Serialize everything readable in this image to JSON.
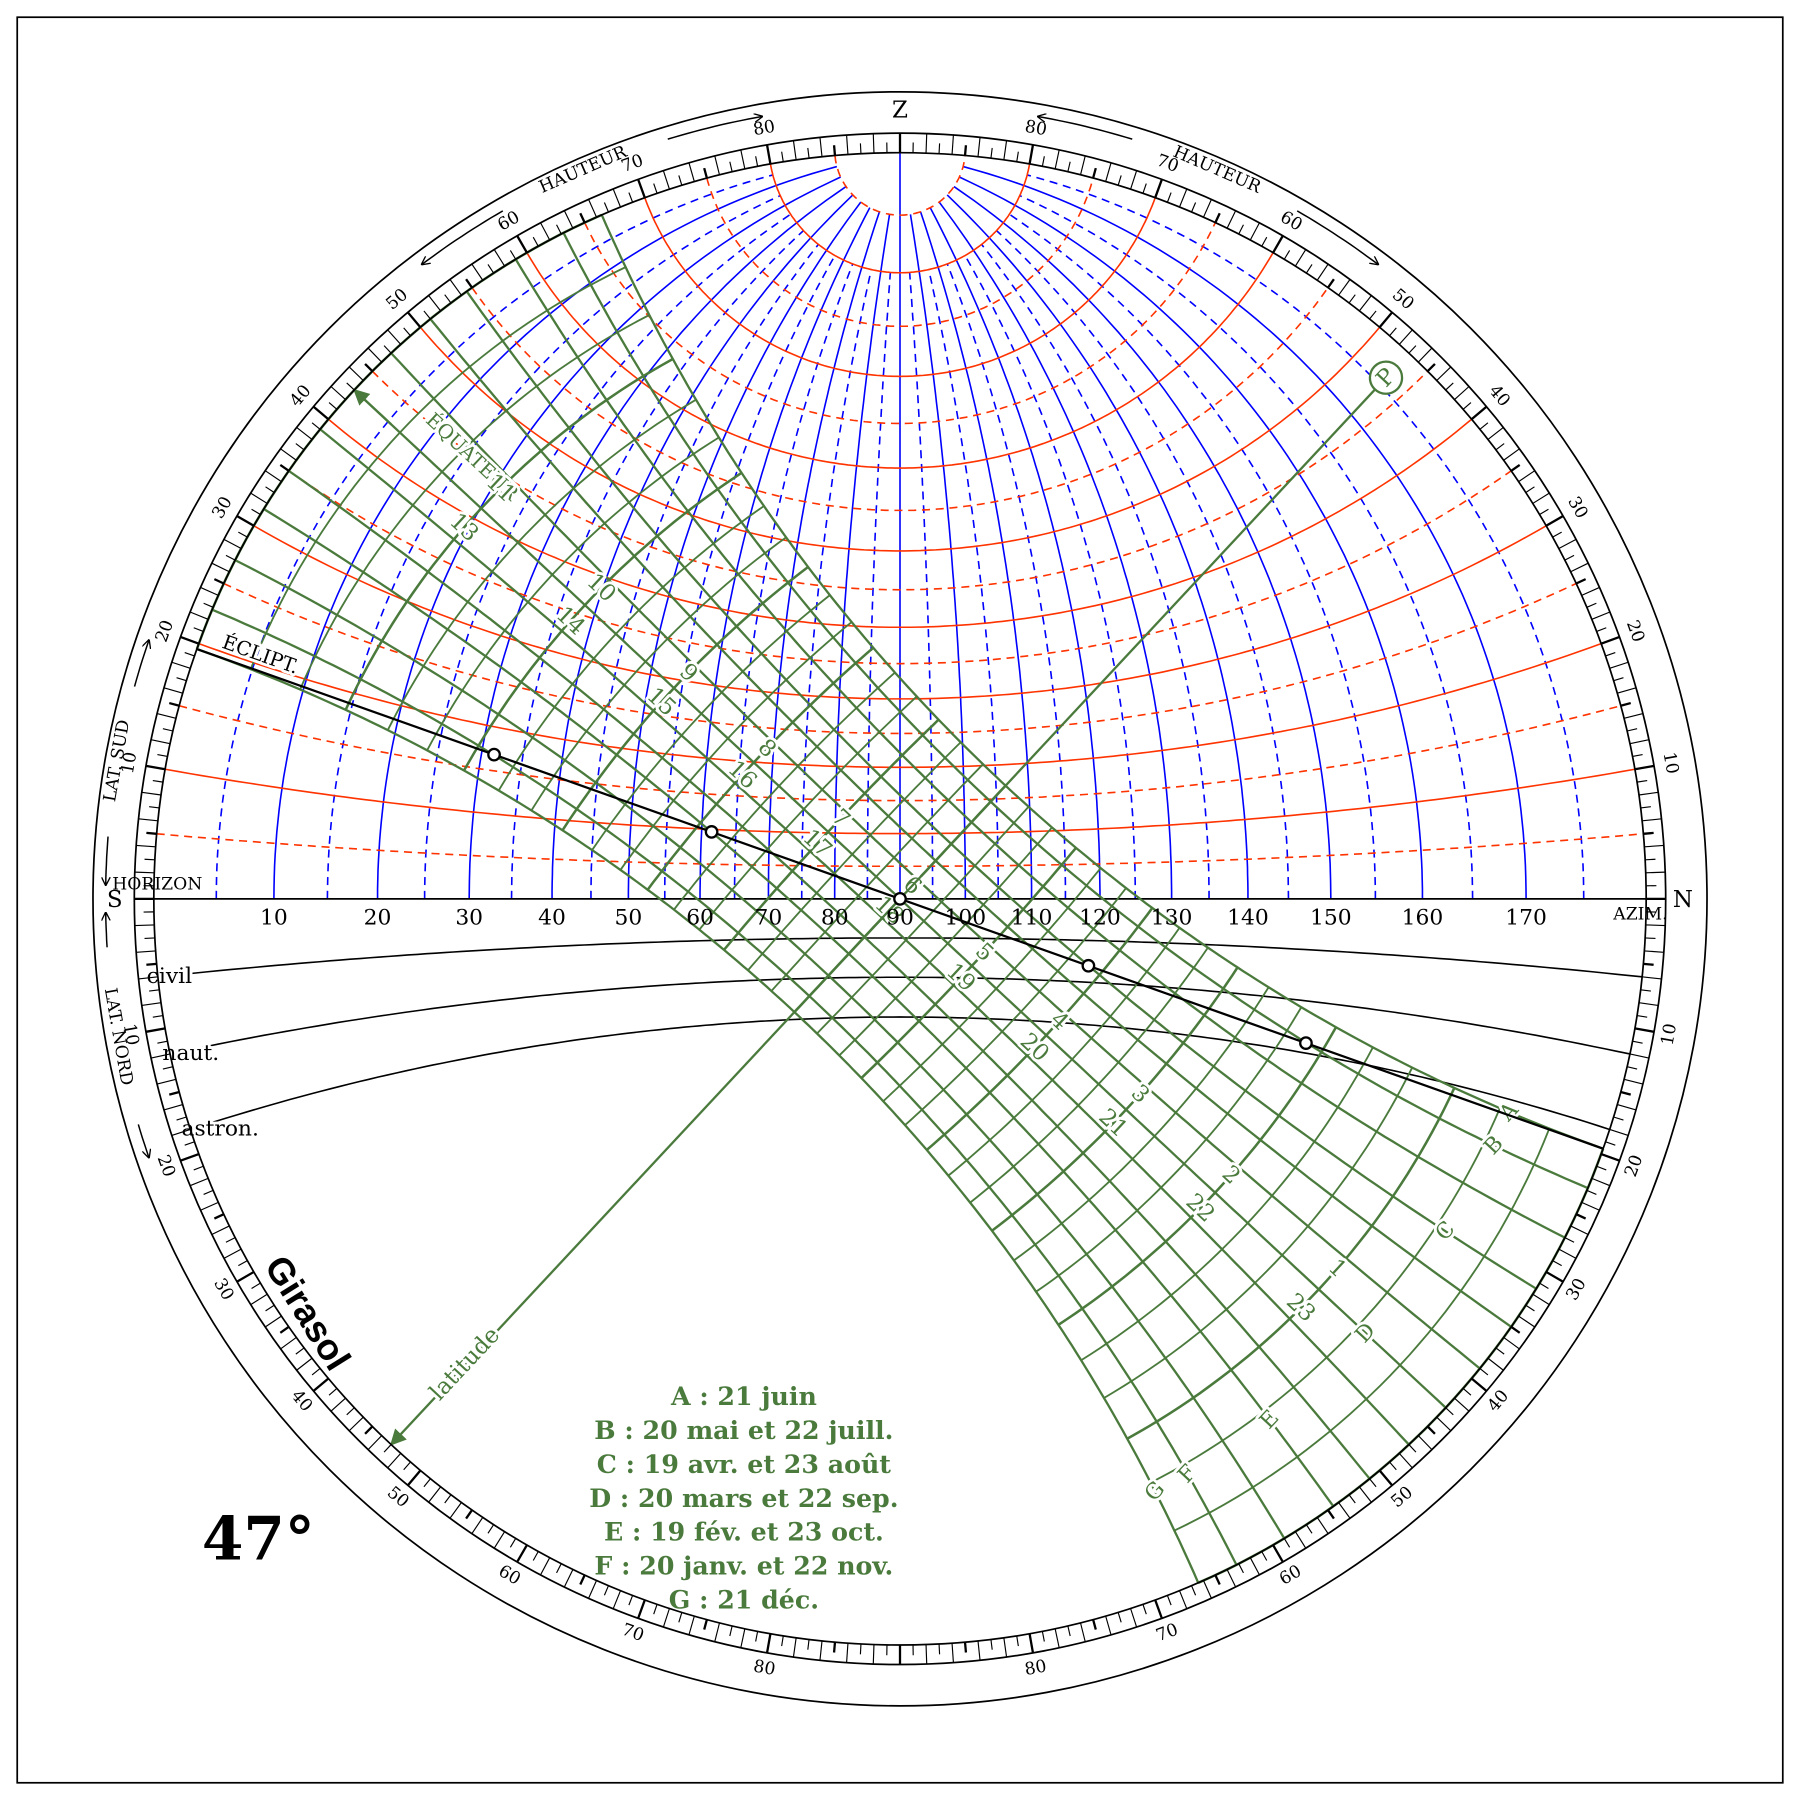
{
  "header": {
    "zenith": "Z",
    "south": "S",
    "north": "N",
    "horizon": "HORIZON",
    "azimuth_title": "AZIM.",
    "altitude_title": "HAUTEUR",
    "lat_south": "LAT. SUD",
    "lat_north": "LAT. NORD",
    "ecliptic": "ÉCLIPT.",
    "equator": "ÉQUATEUR",
    "pole": "P",
    "latitude_axis": "latitude",
    "brand": "Girasol"
  },
  "latitude": {
    "value": 47,
    "label": "47°"
  },
  "azimuth_labels": [
    10,
    20,
    30,
    40,
    50,
    60,
    70,
    80,
    90,
    100,
    110,
    120,
    130,
    140,
    150,
    160,
    170
  ],
  "rim_labels": [
    10,
    20,
    30,
    40,
    50,
    60,
    70,
    80
  ],
  "twilight": [
    "civil",
    "naut.",
    "astron."
  ],
  "hours_morning": [
    11,
    10,
    9,
    8,
    7,
    6,
    5,
    4,
    3,
    2,
    1
  ],
  "hours_evening": [
    13,
    14,
    15,
    16,
    17,
    18,
    19,
    20,
    21,
    22,
    23
  ],
  "date_letters": [
    "A",
    "B",
    "C",
    "D",
    "E",
    "F",
    "G"
  ],
  "legend": [
    "A : 21 juin",
    "B : 20 mai et 22 juill.",
    "C : 19 avr. et 23 août",
    "D : 20 mars et 22 sep.",
    "E : 19 fév. et 23 oct.",
    "F : 20 janv. et 22 nov.",
    "G : 21 déc."
  ]
}
